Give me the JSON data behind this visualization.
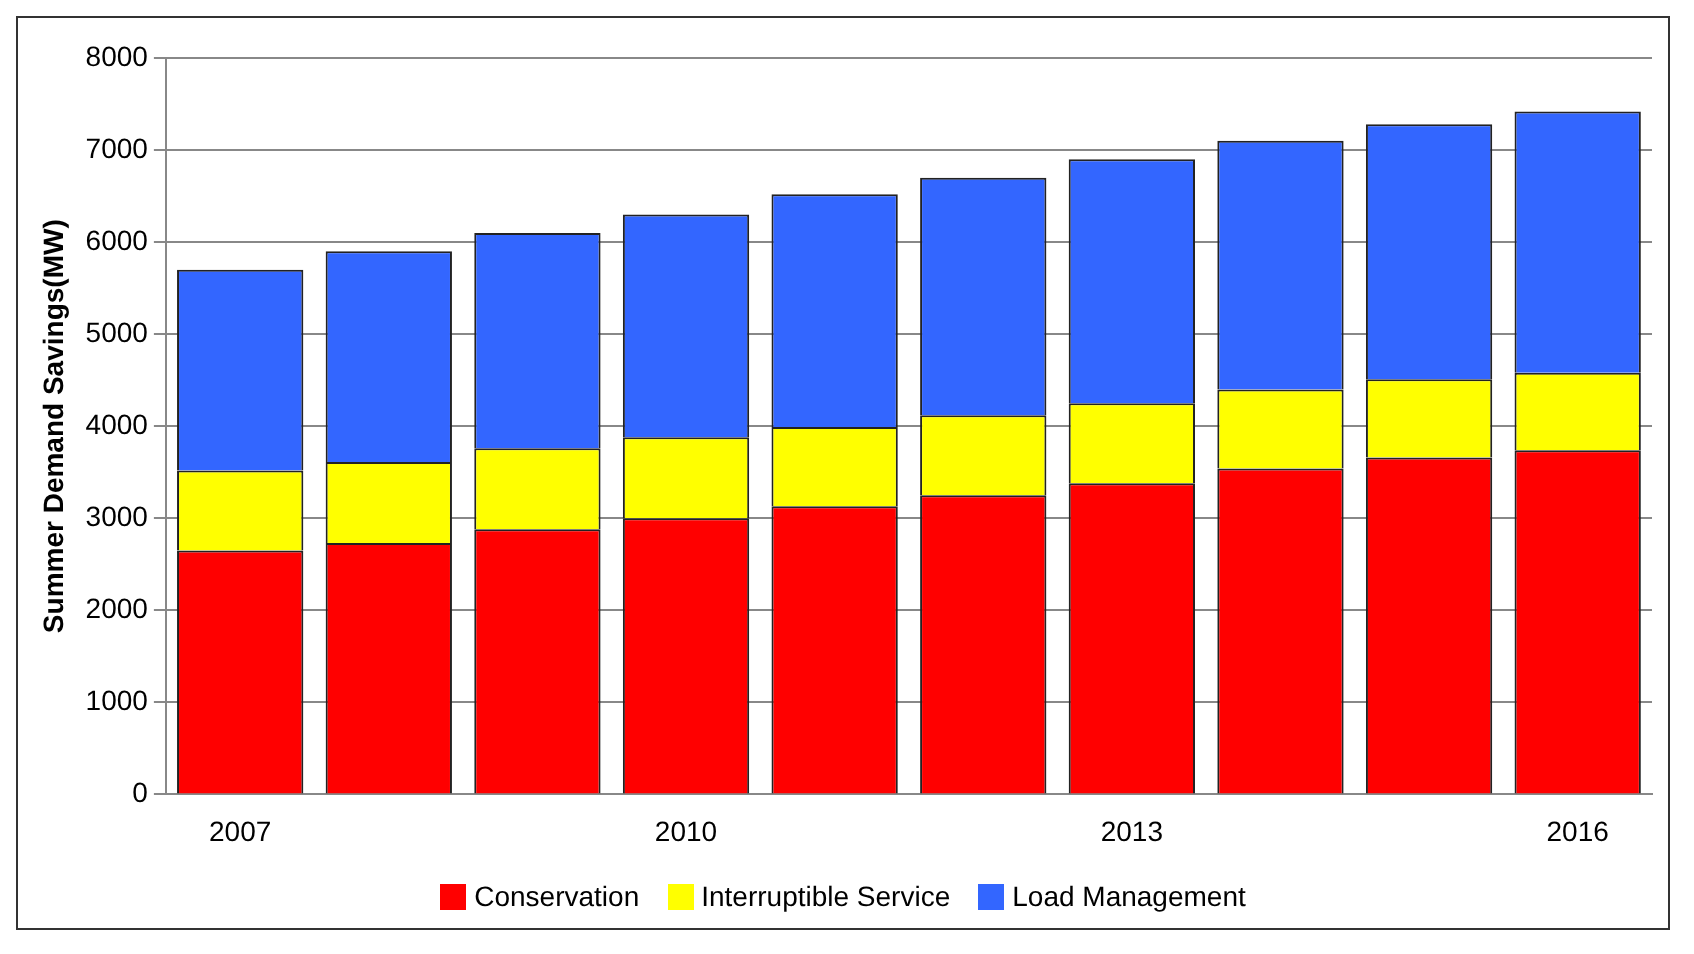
{
  "chart_data": {
    "type": "bar",
    "ylabel": "Summer Demand Savings(MW)",
    "categories": [
      "2007",
      null,
      null,
      "2010",
      null,
      null,
      "2013",
      null,
      null,
      "2016"
    ],
    "stacked": true,
    "series": [
      {
        "name": "Conservation",
        "color": "#ff0000",
        "values": [
          2650,
          2730,
          2880,
          3000,
          3130,
          3250,
          3380,
          3540,
          3660,
          3740
        ]
      },
      {
        "name": "Interruptible Service",
        "color": "#ffff00",
        "values": [
          870,
          880,
          880,
          880,
          860,
          870,
          870,
          860,
          850,
          840
        ]
      },
      {
        "name": "Load Management",
        "color": "#3366ff",
        "values": [
          2180,
          2290,
          2340,
          2420,
          2530,
          2580,
          2650,
          2700,
          2770,
          2840
        ]
      }
    ],
    "ylim": [
      0,
      8000
    ],
    "yticks": [
      0,
      1000,
      2000,
      3000,
      4000,
      5000,
      6000,
      7000,
      8000
    ],
    "grid": "y",
    "legend": "bottom"
  }
}
